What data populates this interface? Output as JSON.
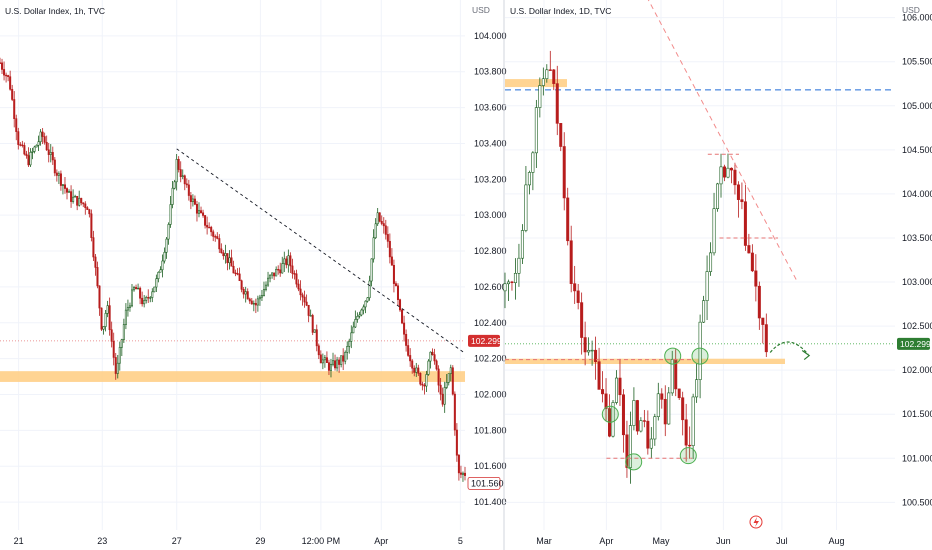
{
  "charts": [
    {
      "title": "U.S. Dollar Index, 1h, TVC",
      "unit": "USD",
      "ylim": [
        101.3,
        104.2
      ],
      "y_ticks": [
        "104.000",
        "103.800",
        "103.600",
        "103.400",
        "103.200",
        "103.000",
        "102.800",
        "102.600",
        "102.400",
        "102.200",
        "102.000",
        "101.800",
        "101.600",
        "101.400"
      ],
      "y_tick_values": [
        104.0,
        103.8,
        103.6,
        103.4,
        103.2,
        103.0,
        102.8,
        102.6,
        102.4,
        102.2,
        102.0,
        101.8,
        101.6,
        101.4
      ],
      "x_ticks": [
        "21",
        "23",
        "27",
        "29",
        "12:00 PM",
        "Apr",
        "5"
      ],
      "x_tick_pos": [
        0.04,
        0.22,
        0.38,
        0.56,
        0.69,
        0.82,
        0.99
      ],
      "price_label": "102.299",
      "price_value": 102.299,
      "last_label": "101.560",
      "last_value": 101.56,
      "colors": {
        "up": "#1b5e20",
        "down": "#b71c1c",
        "price_badge": "#d32f2f",
        "zone": "#ffcc80",
        "trend": "#131722",
        "price_line": "#e57373"
      },
      "support_zone": [
        102.07,
        102.13
      ],
      "trendline": {
        "from": [
          0.38,
          103.37
        ],
        "to": [
          1.0,
          102.23
        ]
      }
    },
    {
      "title": "U.S. Dollar Index, 1D, TVC",
      "unit": "USD",
      "ylim": [
        100.3,
        106.2
      ],
      "y_ticks": [
        "106.000",
        "105.500",
        "105.000",
        "104.500",
        "104.000",
        "103.500",
        "103.000",
        "102.500",
        "102.000",
        "101.500",
        "101.000",
        "100.500"
      ],
      "y_tick_values": [
        106.0,
        105.5,
        105.0,
        104.5,
        104.0,
        103.5,
        103.0,
        102.5,
        102.0,
        101.5,
        101.0,
        100.5
      ],
      "x_ticks": [
        "Mar",
        "Apr",
        "May",
        "Jun",
        "Jul",
        "Aug"
      ],
      "x_tick_pos": [
        0.1,
        0.26,
        0.4,
        0.56,
        0.71,
        0.85
      ],
      "price_label": "102.299",
      "price_value": 102.299,
      "colors": {
        "up": "#1b5e20",
        "down": "#b71c1c",
        "price_badge": "#2e7d32",
        "zone": "#ffcc80",
        "blue_line": "#1e6bd6",
        "red_dash": "#f28b8b",
        "circle": "#4caf50",
        "arrow": "#2e7d32"
      },
      "resistance": 105.18,
      "support_zone": [
        102.07,
        102.13
      ],
      "top_zone": [
        105.2,
        105.28
      ],
      "circles": [
        [
          0.27,
          101.5
        ],
        [
          0.33,
          100.96
        ],
        [
          0.43,
          102.16
        ],
        [
          0.47,
          101.03
        ],
        [
          0.5,
          102.16
        ]
      ],
      "trendline": {
        "from": [
          0.32,
          106.6
        ],
        "to": [
          0.75,
          103.0
        ]
      }
    }
  ],
  "chart_data": [
    {
      "type": "candlestick",
      "title": "U.S. Dollar Index, 1h, TVC",
      "ylabel": "USD",
      "ylim": [
        101.3,
        104.2
      ],
      "keypoints_x": [
        0,
        0.02,
        0.04,
        0.06,
        0.09,
        0.12,
        0.15,
        0.19,
        0.22,
        0.23,
        0.25,
        0.27,
        0.29,
        0.31,
        0.34,
        0.36,
        0.38,
        0.4,
        0.43,
        0.47,
        0.49,
        0.52,
        0.55,
        0.58,
        0.62,
        0.66,
        0.69,
        0.71,
        0.74,
        0.77,
        0.79,
        0.81,
        0.83,
        0.85,
        0.87,
        0.89,
        0.91,
        0.93,
        0.95,
        0.97,
        0.985,
        1.0
      ],
      "keypoints_y": [
        103.85,
        103.75,
        103.4,
        103.3,
        103.45,
        103.25,
        103.1,
        103.05,
        102.35,
        102.5,
        102.1,
        102.45,
        102.6,
        102.5,
        102.65,
        102.9,
        103.3,
        103.15,
        103.0,
        102.85,
        102.75,
        102.6,
        102.5,
        102.65,
        102.75,
        102.5,
        102.2,
        102.15,
        102.2,
        102.45,
        102.55,
        103.0,
        102.9,
        102.6,
        102.3,
        102.15,
        102.05,
        102.25,
        101.95,
        102.15,
        101.55,
        101.56
      ]
    },
    {
      "type": "candlestick",
      "title": "U.S. Dollar Index, 1D, TVC",
      "ylabel": "USD",
      "ylim": [
        100.3,
        106.2
      ],
      "keypoints_x": [
        0,
        0.03,
        0.06,
        0.09,
        0.11,
        0.13,
        0.15,
        0.17,
        0.19,
        0.21,
        0.23,
        0.25,
        0.27,
        0.29,
        0.31,
        0.33,
        0.35,
        0.37,
        0.39,
        0.41,
        0.43,
        0.45,
        0.47,
        0.49,
        0.51,
        0.53,
        0.55,
        0.57,
        0.59,
        0.61,
        0.63,
        0.65,
        0.67
      ],
      "keypoints_y": [
        102.9,
        103.2,
        104.3,
        105.1,
        105.5,
        105.0,
        104.2,
        103.1,
        102.6,
        102.1,
        102.3,
        101.6,
        101.3,
        102.0,
        101.0,
        101.5,
        101.4,
        101.2,
        101.8,
        101.5,
        102.2,
        101.5,
        101.1,
        102.0,
        102.8,
        103.6,
        104.1,
        104.3,
        104.0,
        103.7,
        103.2,
        102.7,
        102.1
      ]
    }
  ]
}
